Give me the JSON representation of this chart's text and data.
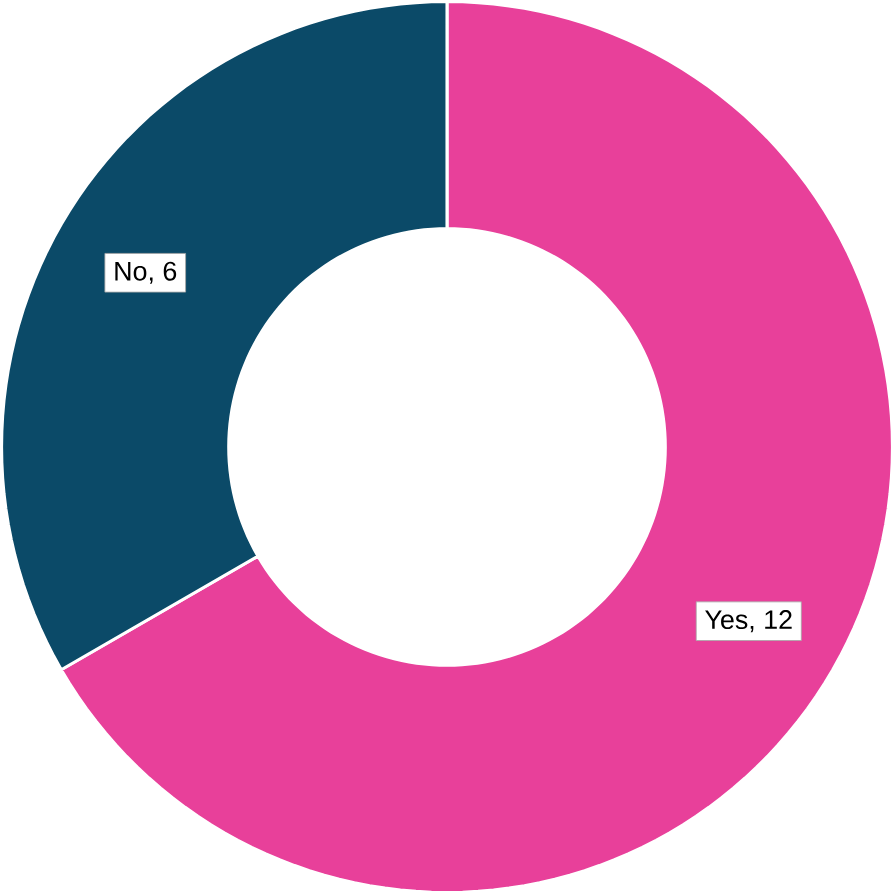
{
  "chart_data": {
    "type": "donut",
    "categories": [
      "Yes",
      "No"
    ],
    "values": [
      12,
      6
    ],
    "colors": [
      "#e8409a",
      "#0b4a68"
    ],
    "value_labels": [
      ", 12",
      ", 6"
    ]
  }
}
